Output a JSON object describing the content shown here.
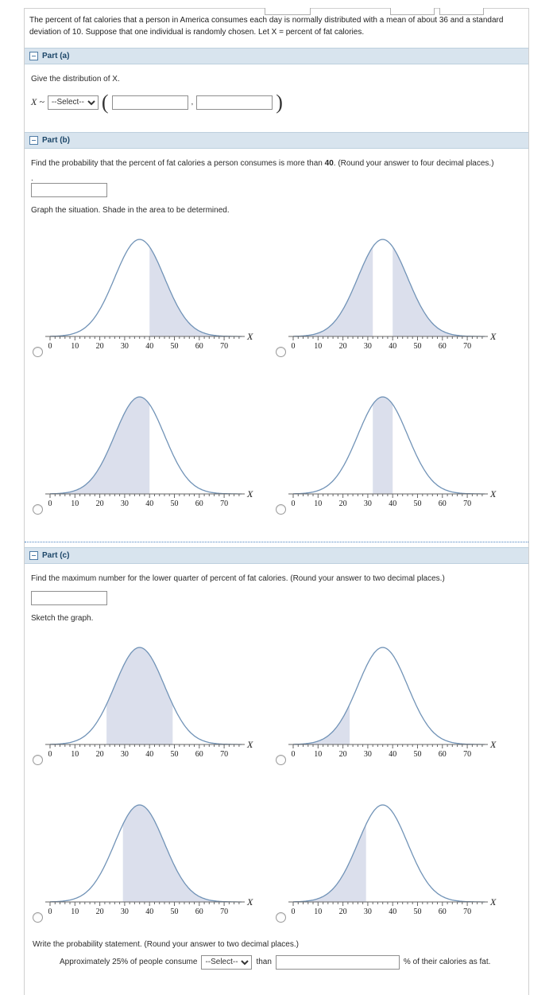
{
  "problem": {
    "text": "The percent of fat calories that a person in America consumes each day is normally distributed with a mean of about 36 and a standard deviation of 10. Suppose that one individual is randomly chosen. Let X = percent of fat calories."
  },
  "parts": {
    "a": {
      "title": "Part (a)",
      "prompt": "Give the distribution of X.",
      "variable": "X ~",
      "select_placeholder": "--Select--",
      "open_paren": "(",
      "comma": ",",
      "close_paren": ")"
    },
    "b": {
      "title": "Part (b)",
      "prompt_before": "Find the probability that the percent of fat calories a person consumes is more than ",
      "prompt_value": "40",
      "prompt_after": ". (Round your answer to four decimal places.)",
      "pre_answer_period": ".",
      "graph_instruction": "Graph the situation. Shade in the area to be determined."
    },
    "c": {
      "title": "Part (c)",
      "prompt": "Find the maximum number for the lower quarter of percent of fat calories. (Round your answer to two decimal places.)",
      "sketch_instruction": "Sketch the graph.",
      "statement_instruction": "Write the probability statement. (Round your answer to two decimal places.)",
      "statement_before": "Approximately 25% of people consume",
      "statement_select": "--Select--",
      "statement_middle": "than",
      "statement_after": "% of their calories as fat."
    }
  },
  "accent_colors": {
    "highlight": "#c7500a",
    "curve": "#7193b7",
    "shade": "#dbdfec",
    "header_bg": "#d8e4ee",
    "header_text": "#1c4668",
    "separator": "#4a82c0"
  },
  "chart_data": [
    {
      "id": "part-b-top-left",
      "group": "b",
      "position": "top-left",
      "type": "area",
      "curve": "normal-pdf",
      "mean": 36,
      "sd": 10,
      "x_range": [
        0,
        77
      ],
      "x_ticks": [
        0,
        10,
        20,
        30,
        40,
        50,
        60,
        70
      ],
      "xlabel": "X",
      "y_axis": "none",
      "shaded_regions": [
        [
          40,
          77
        ]
      ],
      "description": "area shaded to the right of 40",
      "radio_selected": false
    },
    {
      "id": "part-b-top-right",
      "group": "b",
      "position": "top-right",
      "type": "area",
      "curve": "normal-pdf",
      "mean": 36,
      "sd": 10,
      "x_range": [
        0,
        77
      ],
      "x_ticks": [
        0,
        10,
        20,
        30,
        40,
        50,
        60,
        70
      ],
      "xlabel": "X",
      "y_axis": "none",
      "shaded_regions": [
        [
          0,
          32
        ],
        [
          40,
          77
        ]
      ],
      "description": "areas shaded left of 32 and right of 40",
      "radio_selected": false
    },
    {
      "id": "part-b-bottom-left",
      "group": "b",
      "position": "bottom-left",
      "type": "area",
      "curve": "normal-pdf",
      "mean": 36,
      "sd": 10,
      "x_range": [
        0,
        77
      ],
      "x_ticks": [
        0,
        10,
        20,
        30,
        40,
        50,
        60,
        70
      ],
      "xlabel": "X",
      "y_axis": "none",
      "shaded_regions": [
        [
          0,
          40
        ]
      ],
      "description": "area shaded to the left of 40",
      "radio_selected": false
    },
    {
      "id": "part-b-bottom-right",
      "group": "b",
      "position": "bottom-right",
      "type": "area",
      "curve": "normal-pdf",
      "mean": 36,
      "sd": 10,
      "x_range": [
        0,
        77
      ],
      "x_ticks": [
        0,
        10,
        20,
        30,
        40,
        50,
        60,
        70
      ],
      "xlabel": "X",
      "y_axis": "none",
      "shaded_regions": [
        [
          32,
          40
        ]
      ],
      "description": "area shaded between 32 and 40",
      "radio_selected": false
    },
    {
      "id": "part-c-top-left",
      "group": "c",
      "position": "top-left",
      "type": "area",
      "curve": "normal-pdf",
      "mean": 36,
      "sd": 10,
      "x_range": [
        0,
        77
      ],
      "x_ticks": [
        0,
        10,
        20,
        30,
        40,
        50,
        60,
        70
      ],
      "xlabel": "X",
      "y_axis": "none",
      "shaded_regions": [
        [
          22.7,
          49.3
        ]
      ],
      "description": "area shaded between about 23 and 49",
      "radio_selected": false
    },
    {
      "id": "part-c-top-right",
      "group": "c",
      "position": "top-right",
      "type": "area",
      "curve": "normal-pdf",
      "mean": 36,
      "sd": 10,
      "x_range": [
        0,
        77
      ],
      "x_ticks": [
        0,
        10,
        20,
        30,
        40,
        50,
        60,
        70
      ],
      "xlabel": "X",
      "y_axis": "none",
      "shaded_regions": [
        [
          0,
          22.7
        ]
      ],
      "description": "area shaded to the left of about 23",
      "radio_selected": false
    },
    {
      "id": "part-c-bottom-left",
      "group": "c",
      "position": "bottom-left",
      "type": "area",
      "curve": "normal-pdf",
      "mean": 36,
      "sd": 10,
      "x_range": [
        0,
        77
      ],
      "x_ticks": [
        0,
        10,
        20,
        30,
        40,
        50,
        60,
        70
      ],
      "xlabel": "X",
      "y_axis": "none",
      "shaded_regions": [
        [
          29.3,
          77
        ]
      ],
      "description": "area shaded to the right of about 29",
      "radio_selected": false
    },
    {
      "id": "part-c-bottom-right",
      "group": "c",
      "position": "bottom-right",
      "type": "area",
      "curve": "normal-pdf",
      "mean": 36,
      "sd": 10,
      "x_range": [
        0,
        77
      ],
      "x_ticks": [
        0,
        10,
        20,
        30,
        40,
        50,
        60,
        70
      ],
      "xlabel": "X",
      "y_axis": "none",
      "shaded_regions": [
        [
          0,
          29.3
        ]
      ],
      "description": "area shaded to the left of about 29",
      "radio_selected": false
    }
  ]
}
